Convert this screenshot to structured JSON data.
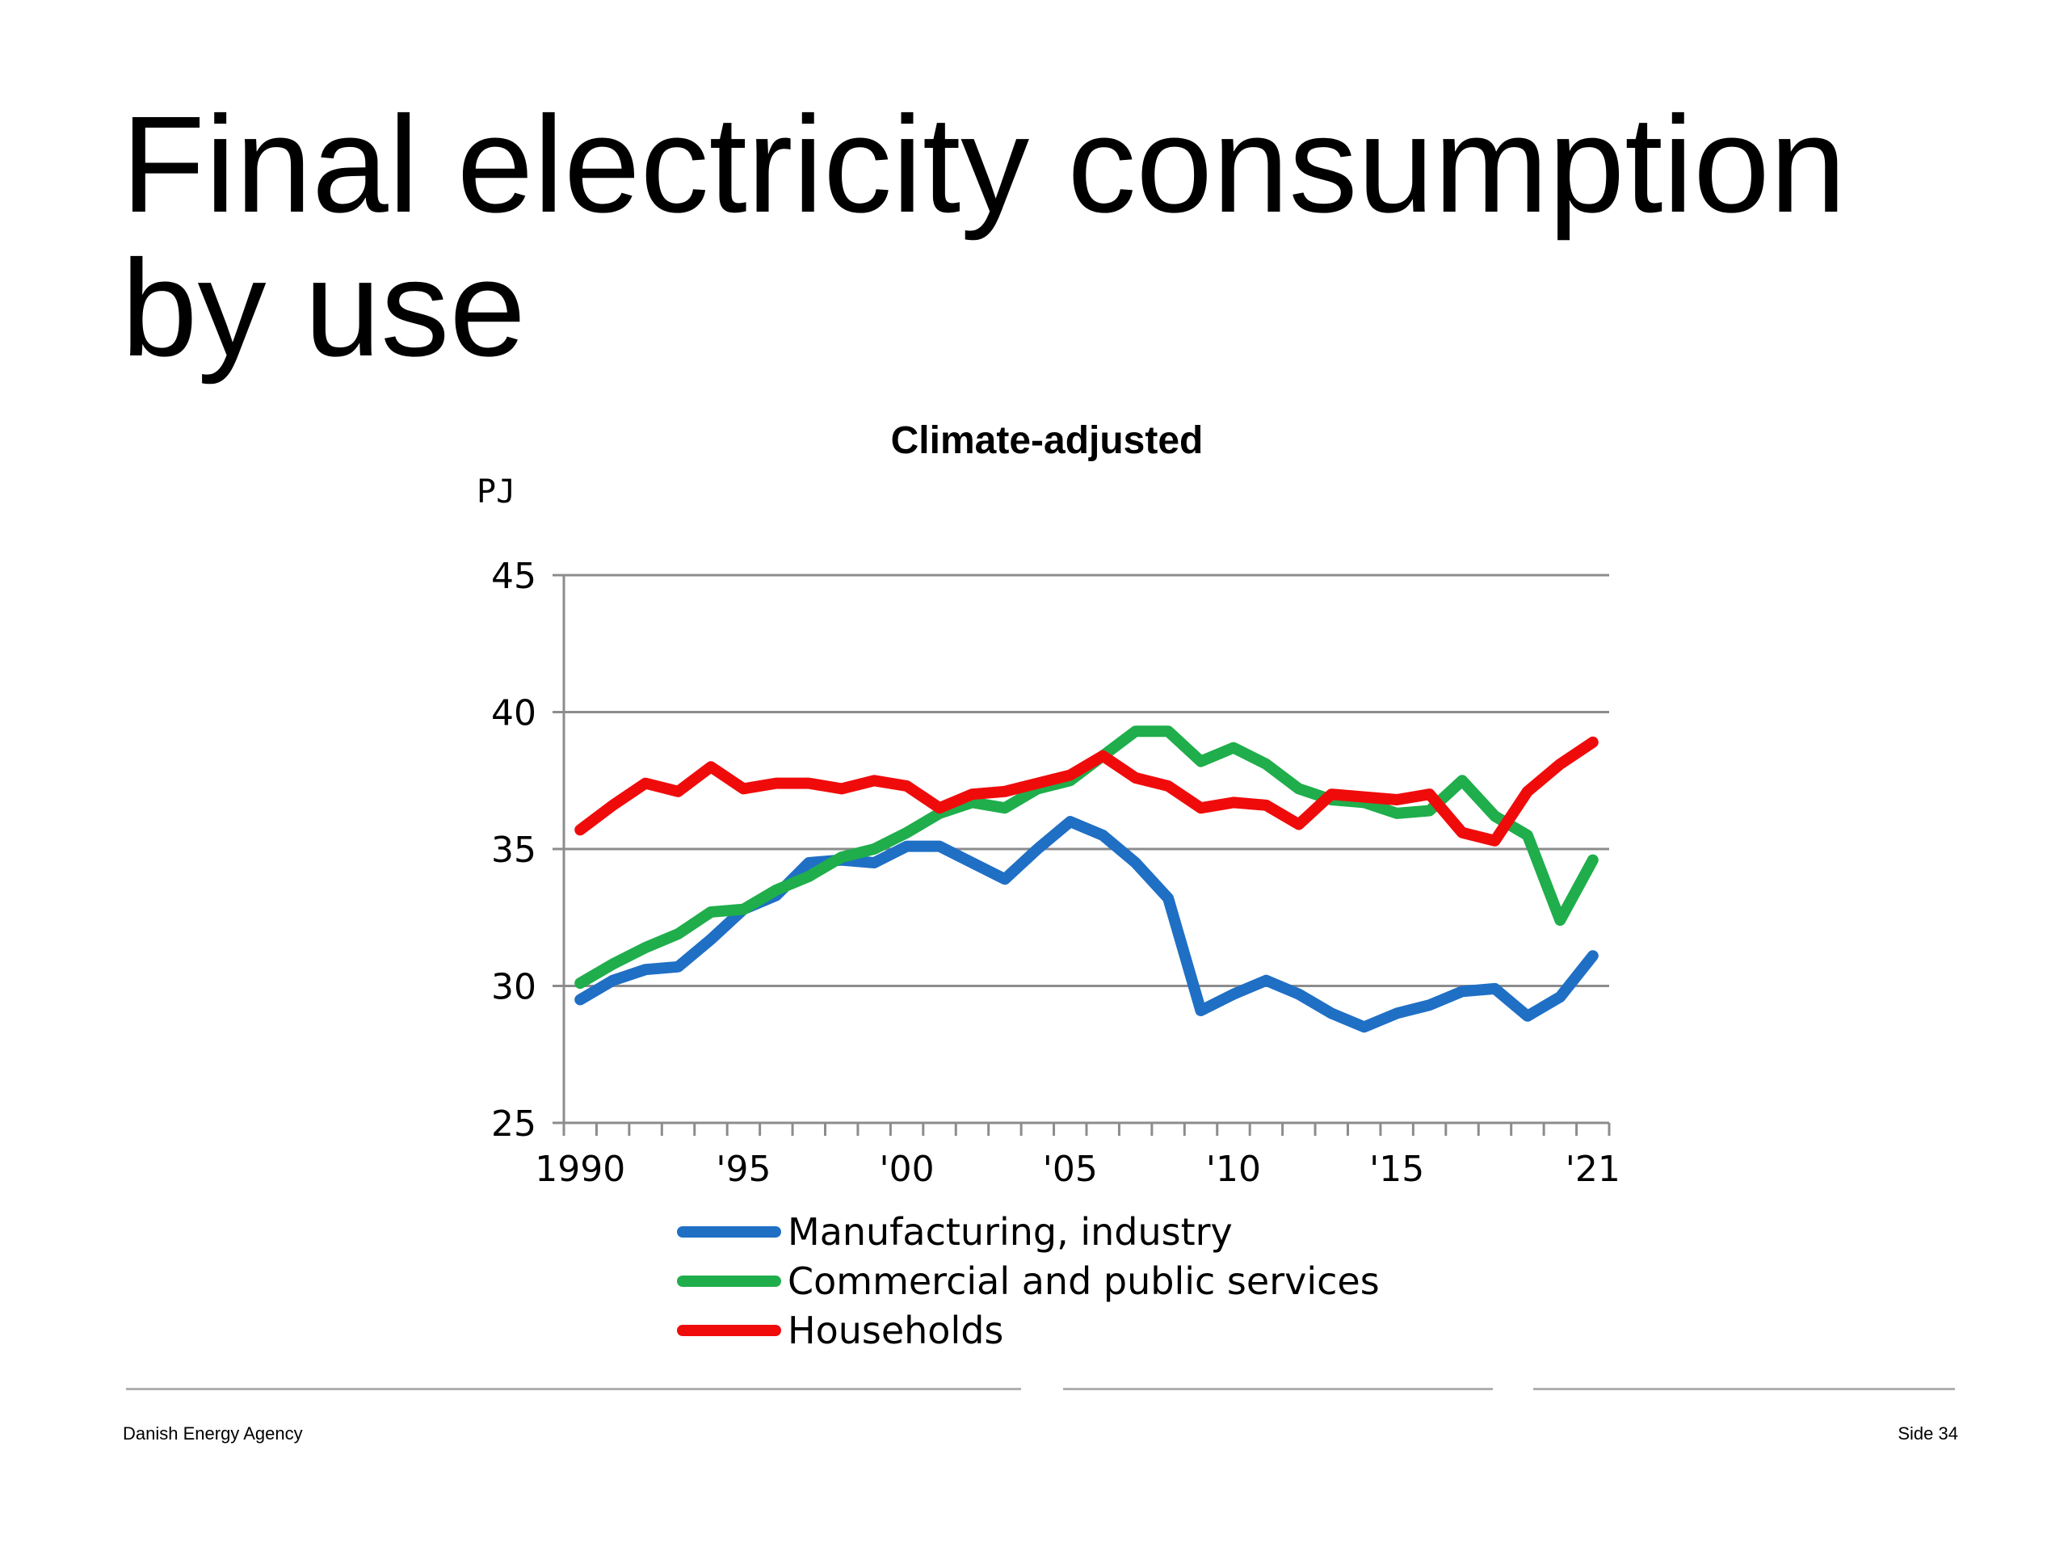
{
  "slide": {
    "title": "Final electricity consumption by use",
    "footer_left": "Danish Energy Agency",
    "footer_right": "Side 34"
  },
  "chart_data": {
    "type": "line",
    "title": "Climate-adjusted",
    "ylabel": "PJ",
    "ylim": [
      25,
      45
    ],
    "yticks": [
      "25",
      "30",
      "35",
      "40",
      "45"
    ],
    "x": [
      1990,
      1991,
      1992,
      1993,
      1994,
      1995,
      1996,
      1997,
      1998,
      1999,
      2000,
      2001,
      2002,
      2003,
      2004,
      2005,
      2006,
      2007,
      2008,
      2009,
      2010,
      2011,
      2012,
      2013,
      2014,
      2015,
      2016,
      2017,
      2018,
      2019,
      2020,
      2021
    ],
    "xtick_labels": [
      {
        "x": 1990,
        "label": "1990"
      },
      {
        "x": 1995,
        "label": "'95"
      },
      {
        "x": 2000,
        "label": "'00"
      },
      {
        "x": 2005,
        "label": "'05"
      },
      {
        "x": 2010,
        "label": "'10"
      },
      {
        "x": 2015,
        "label": "'15"
      },
      {
        "x": 2021,
        "label": "'21"
      }
    ],
    "grid": "horizontal",
    "legend_position": "bottom",
    "series": [
      {
        "name": "Manufacturing, industry",
        "color": "#1f6fc5",
        "values": [
          29.5,
          30.2,
          30.6,
          30.7,
          31.7,
          32.8,
          33.3,
          34.5,
          34.6,
          34.5,
          35.1,
          35.1,
          34.5,
          33.9,
          35.0,
          36.0,
          35.5,
          34.5,
          33.2,
          29.1,
          29.7,
          30.2,
          29.7,
          29.0,
          28.5,
          29.0,
          29.3,
          29.8,
          29.9,
          28.9,
          29.6,
          31.1
        ]
      },
      {
        "name": "Commercial and public services",
        "color": "#1fae4b",
        "values": [
          30.1,
          30.8,
          31.4,
          31.9,
          32.7,
          32.8,
          33.5,
          34.0,
          34.7,
          35.0,
          35.6,
          36.3,
          36.7,
          36.5,
          37.2,
          37.5,
          38.4,
          39.3,
          39.3,
          38.2,
          38.7,
          38.1,
          37.2,
          36.8,
          36.7,
          36.3,
          36.4,
          37.5,
          36.2,
          35.5,
          32.4,
          34.6
        ]
      },
      {
        "name": "Households",
        "color": "#f00b0b",
        "values": [
          35.7,
          36.6,
          37.4,
          37.1,
          38.0,
          37.2,
          37.4,
          37.4,
          37.2,
          37.5,
          37.3,
          36.5,
          37.0,
          37.1,
          37.4,
          37.7,
          38.4,
          37.6,
          37.3,
          36.5,
          36.7,
          36.6,
          35.9,
          37.0,
          36.9,
          36.8,
          37.0,
          35.6,
          35.3,
          37.1,
          38.1,
          38.9
        ]
      }
    ]
  }
}
